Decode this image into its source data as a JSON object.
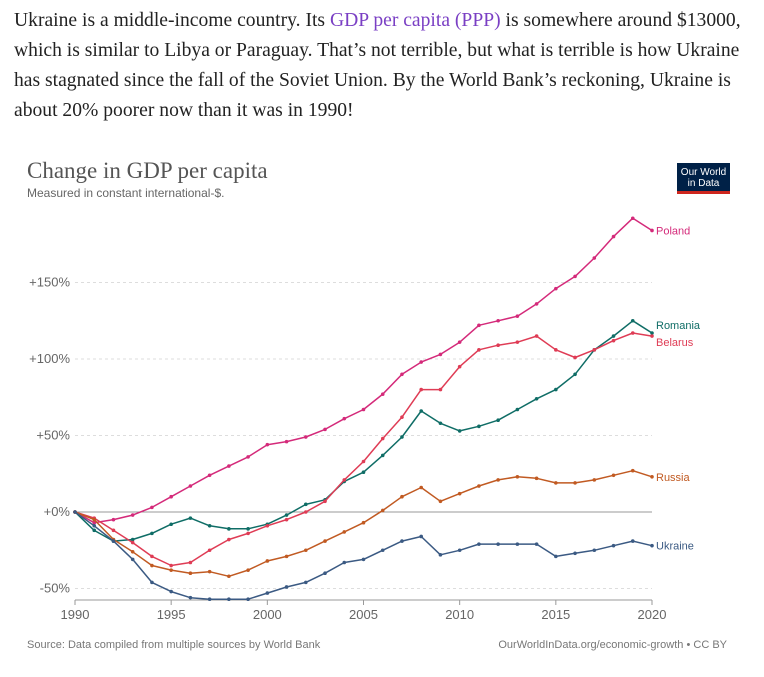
{
  "intro": {
    "before": "Ukraine is a middle-income country. Its ",
    "link": "GDP per capita (PPP)",
    "after": " is somewhere around $13000, which is similar to Libya or Paraguay. That’s not terrible, but what is terrible is how Ukraine has stagnated since the fall of the Soviet Union. By the World Bank’s reckoning, Ukraine is about 20% poorer now than it was in 1990!"
  },
  "logo": {
    "line1": "Our World",
    "line2": "in Data"
  },
  "footer": {
    "source": "Source: Data compiled from multiple sources by World Bank",
    "credit": "OurWorldInData.org/economic-growth • CC BY"
  },
  "colors": {
    "Poland": "#d42a7a",
    "Romania": "#0f6d66",
    "Belarus": "#df3c55",
    "Russia": "#c15a22",
    "Ukraine": "#3b5a83"
  },
  "chart_data": {
    "type": "line",
    "title": "Change in GDP per capita",
    "subtitle": "Measured in constant international-$.",
    "xlim": [
      1990,
      2020
    ],
    "ylim": [
      -50,
      190
    ],
    "x_ticks": [
      1990,
      1995,
      2000,
      2005,
      2010,
      2015,
      2020
    ],
    "y_ticks": [
      {
        "value": -50,
        "label": "-50%"
      },
      {
        "value": 0,
        "label": "+0%"
      },
      {
        "value": 50,
        "label": "+50%"
      },
      {
        "value": 100,
        "label": "+100%"
      },
      {
        "value": 150,
        "label": "+150%"
      }
    ],
    "grid": true,
    "legend": "line-end labels",
    "x": [
      1990,
      1991,
      1992,
      1993,
      1994,
      1995,
      1996,
      1997,
      1998,
      1999,
      2000,
      2001,
      2002,
      2003,
      2004,
      2005,
      2006,
      2007,
      2008,
      2009,
      2010,
      2011,
      2012,
      2013,
      2014,
      2015,
      2016,
      2017,
      2018,
      2019,
      2020
    ],
    "series": [
      {
        "name": "Poland",
        "values": [
          0,
          -7,
          -5,
          -2,
          3,
          10,
          17,
          24,
          30,
          36,
          44,
          46,
          49,
          54,
          61,
          67,
          77,
          90,
          98,
          103,
          111,
          122,
          125,
          128,
          136,
          146,
          154,
          166,
          180,
          192,
          184
        ]
      },
      {
        "name": "Romania",
        "values": [
          0,
          -12,
          -19,
          -18,
          -14,
          -8,
          -4,
          -9,
          -11,
          -11,
          -8,
          -2,
          5,
          8,
          20,
          26,
          37,
          49,
          66,
          58,
          53,
          56,
          60,
          67,
          74,
          80,
          90,
          106,
          115,
          125,
          117
        ]
      },
      {
        "name": "Belarus",
        "values": [
          0,
          -4,
          -12,
          -20,
          -29,
          -35,
          -33,
          -25,
          -18,
          -14,
          -9,
          -5,
          0,
          7,
          21,
          33,
          48,
          62,
          80,
          80,
          95,
          106,
          109,
          111,
          115,
          106,
          101,
          106,
          112,
          117,
          115
        ]
      },
      {
        "name": "Russia",
        "values": [
          0,
          -5,
          -18,
          -26,
          -35,
          -38,
          -40,
          -39,
          -42,
          -38,
          -32,
          -29,
          -25,
          -19,
          -13,
          -7,
          1,
          10,
          16,
          7,
          12,
          17,
          21,
          23,
          22,
          19,
          19,
          21,
          24,
          27,
          23
        ]
      },
      {
        "name": "Ukraine",
        "values": [
          0,
          -9,
          -19,
          -31,
          -46,
          -52,
          -56,
          -57,
          -57,
          -57,
          -53,
          -49,
          -46,
          -40,
          -33,
          -31,
          -25,
          -19,
          -16,
          -28,
          -25,
          -21,
          -21,
          -21,
          -21,
          -29,
          -27,
          -25,
          -22,
          -19,
          -22
        ]
      }
    ]
  }
}
